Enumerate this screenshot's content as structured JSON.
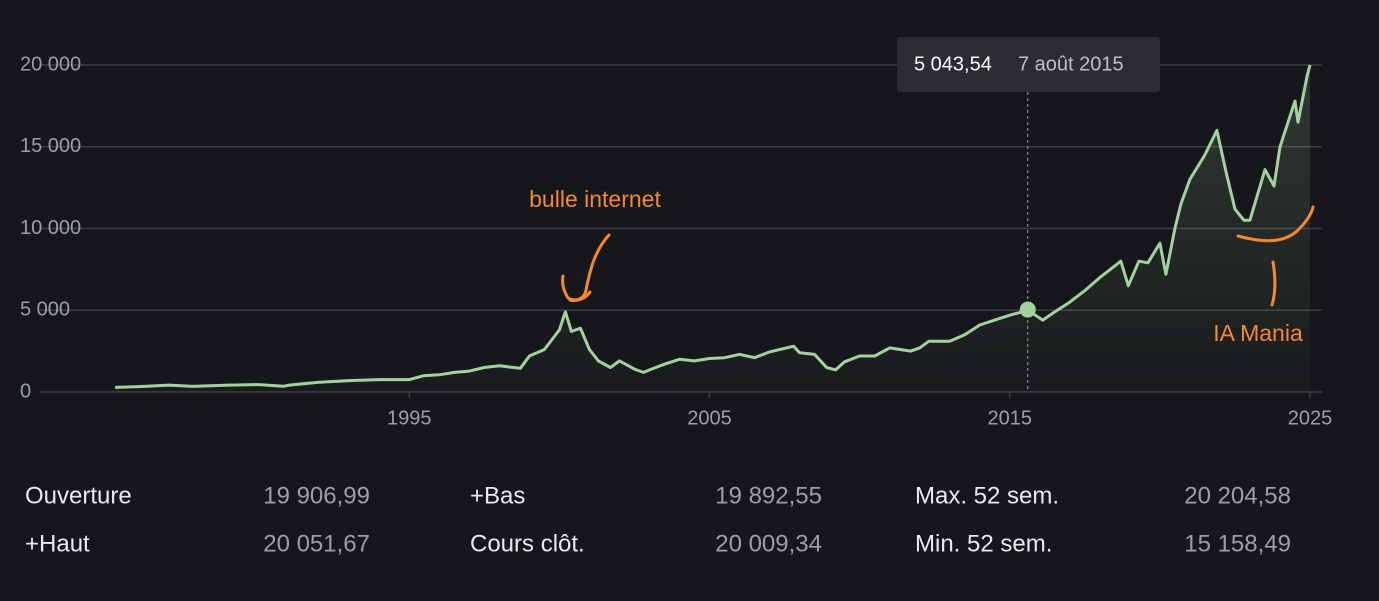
{
  "chart_data": {
    "type": "line",
    "color": "#a3d39c",
    "x": [
      1985.2,
      1986,
      1987,
      1987.8,
      1988,
      1989,
      1990,
      1990.8,
      1991,
      1992,
      1993,
      1994,
      1995,
      1995.5,
      1996,
      1996.5,
      1997,
      1997.5,
      1998,
      1998.7,
      1999,
      1999.5,
      2000,
      2000.2,
      2000.4,
      2000.7,
      2001,
      2001.3,
      2001.7,
      2002,
      2002.5,
      2002.8,
      2003,
      2003.5,
      2004,
      2004.5,
      2005,
      2005.5,
      2006,
      2006.5,
      2007,
      2007.8,
      2008,
      2008.5,
      2008.9,
      2009.2,
      2009.5,
      2010,
      2010.5,
      2011,
      2011.7,
      2012,
      2012.3,
      2013,
      2013.5,
      2014,
      2014.5,
      2015,
      2015.6,
      2016.1,
      2016.5,
      2017,
      2017.5,
      2018,
      2018.7,
      2018.95,
      2019.3,
      2019.6,
      2020,
      2020.2,
      2020.5,
      2020.7,
      2021,
      2021.5,
      2021.9,
      2022.2,
      2022.5,
      2022.8,
      2023,
      2023.5,
      2023.8,
      2024,
      2024.5,
      2024.6,
      2024.9,
      2025
    ],
    "values": [
      280,
      330,
      420,
      340,
      360,
      420,
      450,
      350,
      420,
      600,
      700,
      760,
      760,
      1000,
      1050,
      1200,
      1280,
      1500,
      1600,
      1450,
      2200,
      2600,
      3800,
      4900,
      3700,
      3900,
      2600,
      1900,
      1500,
      1900,
      1400,
      1200,
      1350,
      1700,
      2000,
      1900,
      2050,
      2100,
      2300,
      2100,
      2450,
      2800,
      2400,
      2300,
      1500,
      1350,
      1850,
      2200,
      2200,
      2700,
      2500,
      2700,
      3100,
      3100,
      3500,
      4100,
      4400,
      4700,
      5000,
      4400,
      4900,
      5500,
      6200,
      7000,
      8000,
      6500,
      8000,
      7900,
      9100,
      7200,
      10000,
      11500,
      13000,
      14500,
      16000,
      13500,
      11200,
      10500,
      10500,
      13600,
      12600,
      15000,
      17800,
      16500,
      19300,
      20000
    ],
    "xlim": [
      1982.7,
      2025.4
    ],
    "xticks": [
      1995,
      2005,
      2015,
      2025
    ],
    "ylim": [
      0,
      20000
    ],
    "yticks": [
      0,
      {
        "value": 5000,
        "label": "5 000"
      },
      {
        "value": 10000,
        "label": "10 000"
      },
      {
        "value": 15000,
        "label": "15 000"
      },
      {
        "value": 20000,
        "label": "20 000"
      }
    ],
    "grid": true,
    "tooltip": {
      "value": 5043.54,
      "value_label": "5 043,54",
      "date": "7 août 2015",
      "x": 2015.6
    },
    "annotations": [
      "bulle internet",
      "IA Mania"
    ]
  },
  "stats": [
    {
      "label": "Ouverture",
      "value": "19 906,99"
    },
    {
      "label": "+Bas",
      "value": "19 892,55"
    },
    {
      "label": "Max. 52 sem.",
      "value": "20 204,58"
    },
    {
      "label": "+Haut",
      "value": "20 051,67"
    },
    {
      "label": "Cours clôt.",
      "value": "20 009,34"
    },
    {
      "label": "Min. 52 sem.",
      "value": "15 158,49"
    }
  ]
}
